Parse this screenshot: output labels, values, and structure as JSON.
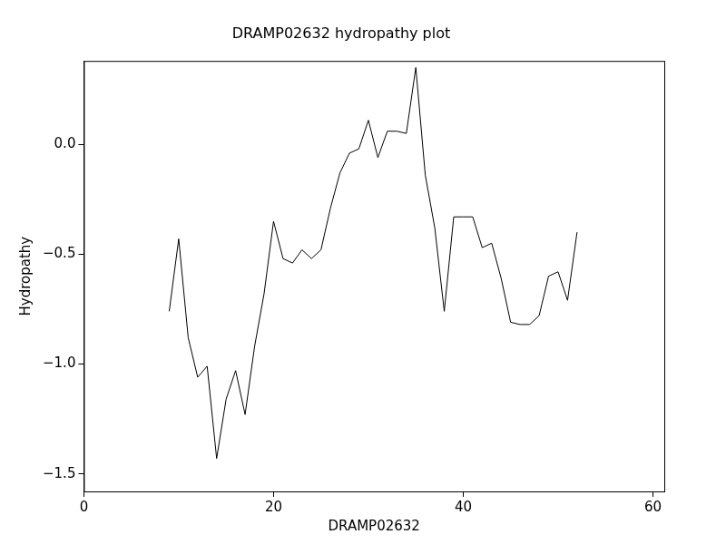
{
  "chart_data": {
    "type": "line",
    "title": "DRAMP02632 hydropathy plot",
    "xlabel": "DRAMP02632",
    "ylabel": "Hydropathy",
    "x": [
      9,
      10,
      11,
      12,
      13,
      14,
      15,
      16,
      17,
      18,
      19,
      20,
      21,
      22,
      23,
      24,
      25,
      26,
      27,
      28,
      29,
      30,
      31,
      32,
      33,
      34,
      35,
      36,
      37,
      38,
      39,
      40,
      41,
      42,
      43,
      44,
      45,
      46,
      47,
      48,
      49,
      50,
      51,
      52
    ],
    "values": [
      -0.76,
      -0.43,
      -0.88,
      -1.06,
      -1.01,
      -1.43,
      -1.16,
      -1.03,
      -1.23,
      -0.92,
      -0.68,
      -0.35,
      -0.52,
      -0.54,
      -0.48,
      -0.52,
      -0.48,
      -0.29,
      -0.13,
      -0.04,
      -0.02,
      0.11,
      -0.06,
      0.06,
      0.06,
      0.05,
      0.35,
      -0.14,
      -0.38,
      -0.76,
      -0.33,
      -0.33,
      -0.33,
      -0.47,
      -0.45,
      -0.61,
      -0.81,
      -0.82,
      -0.82,
      -0.78,
      -0.6,
      -0.58,
      -0.71,
      -0.4
    ],
    "color": "#000000",
    "xlim": [
      0,
      61.2
    ],
    "xticks": [
      0,
      20,
      40,
      60
    ],
    "ylim": [
      -1.58,
      0.38
    ],
    "yticks": [
      {
        "value": -1.5,
        "label": "−1.5"
      },
      {
        "value": -1.0,
        "label": "−1.0"
      },
      {
        "value": -0.5,
        "label": "−0.5"
      },
      {
        "value": 0,
        "label": "0.0"
      }
    ],
    "grid": false
  }
}
